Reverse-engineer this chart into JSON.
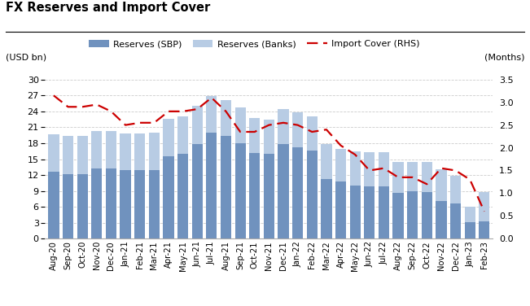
{
  "title": "FX Reserves and Import Cover",
  "ylabel_left": "(USD bn)",
  "ylabel_right": "(Months)",
  "categories": [
    "Aug-20",
    "Sep-20",
    "Oct-20",
    "Nov-20",
    "Dec-20",
    "Jan-21",
    "Feb-21",
    "Mar-21",
    "Apr-21",
    "May-21",
    "Jun-21",
    "Jul-21",
    "Aug-21",
    "Sep-21",
    "Oct-21",
    "Nov-21",
    "Dec-21",
    "Jan-22",
    "Feb-22",
    "Mar-22",
    "Apr-22",
    "May-22",
    "Jun-22",
    "Jul-22",
    "Aug-22",
    "Sep-22",
    "Oct-22",
    "Nov-22",
    "Dec-22",
    "Jan-23",
    "Feb-23"
  ],
  "sbp_reserves": [
    12.7,
    12.1,
    12.1,
    13.3,
    13.3,
    12.9,
    12.9,
    13.0,
    15.6,
    16.0,
    17.8,
    20.0,
    19.4,
    18.0,
    16.2,
    16.0,
    17.8,
    17.2,
    16.6,
    11.3,
    10.8,
    10.0,
    9.8,
    9.8,
    8.6,
    8.9,
    8.8,
    7.1,
    6.7,
    3.1,
    3.2
  ],
  "banks_reserves": [
    7.0,
    7.2,
    7.2,
    7.0,
    7.0,
    7.0,
    6.9,
    7.0,
    7.0,
    7.0,
    7.2,
    6.9,
    6.8,
    6.7,
    6.5,
    6.5,
    6.7,
    6.7,
    6.5,
    6.5,
    6.1,
    6.5,
    6.5,
    6.5,
    5.8,
    5.6,
    5.7,
    6.0,
    5.2,
    2.9,
    5.6
  ],
  "import_cover": [
    3.15,
    2.9,
    2.9,
    2.95,
    2.8,
    2.5,
    2.55,
    2.55,
    2.8,
    2.8,
    2.85,
    3.1,
    2.8,
    2.35,
    2.35,
    2.5,
    2.55,
    2.5,
    2.35,
    2.4,
    2.05,
    1.85,
    1.5,
    1.55,
    1.35,
    1.35,
    1.2,
    1.55,
    1.5,
    1.3,
    0.6
  ],
  "color_sbp": "#7092be",
  "color_banks": "#b8cce4",
  "color_line": "#cc0000",
  "ylim_left": [
    0,
    30
  ],
  "ylim_right": [
    0,
    3.5
  ],
  "yticks_left": [
    0,
    3,
    6,
    9,
    12,
    15,
    18,
    21,
    24,
    27,
    30
  ],
  "yticks_right": [
    0.0,
    0.5,
    1.0,
    1.5,
    2.0,
    2.5,
    3.0,
    3.5
  ],
  "background_color": "#ffffff",
  "grid_color": "#cccccc"
}
